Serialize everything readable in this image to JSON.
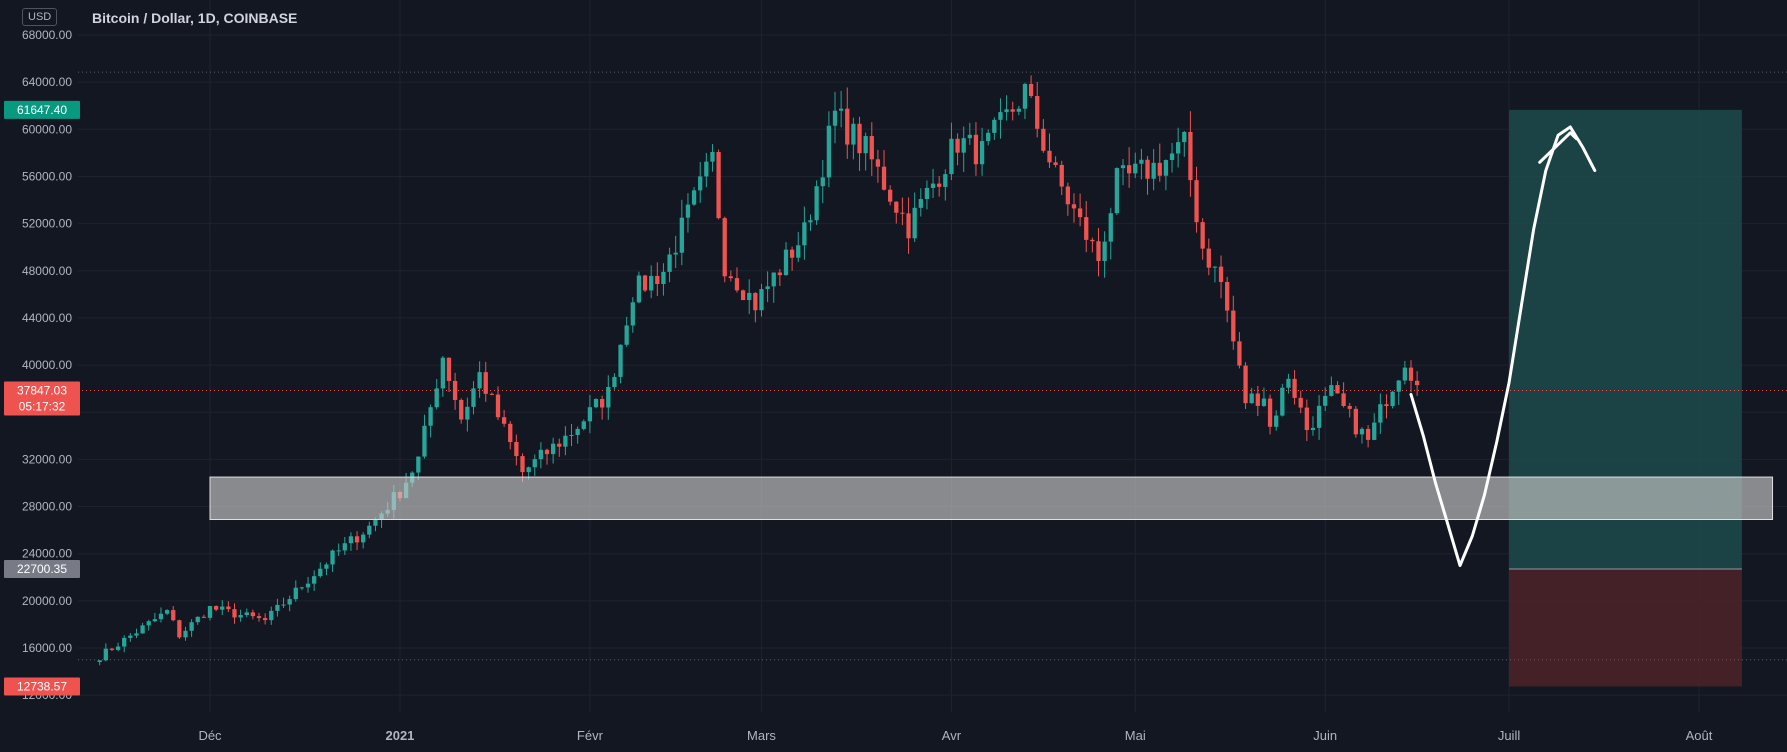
{
  "header": {
    "currency_badge": "USD",
    "title": "Bitcoin / Dollar, 1D, COINBASE"
  },
  "colors": {
    "background": "#131722",
    "up": "#26a69a",
    "down": "#ef5350",
    "grid": "#1f2330",
    "axis_text": "#b2b5be",
    "target_zone": "#1d4a4a",
    "stop_zone": "#4a2227",
    "support_zone": "#c8c8c8"
  },
  "chart_data": {
    "type": "candlestick",
    "y_axis": {
      "ylim": [
        10000,
        69000
      ],
      "ticks": [
        "68000.00",
        "64000.00",
        "60000.00",
        "56000.00",
        "52000.00",
        "48000.00",
        "44000.00",
        "40000.00",
        "32000.00",
        "28000.00",
        "24000.00",
        "20000.00",
        "16000.00"
      ],
      "label_positions": [
        68000,
        64000,
        60000,
        56000,
        52000,
        48000,
        44000,
        40000,
        32000,
        28000,
        24000,
        20000,
        16000
      ],
      "partial_bottom_tick": "12000.00",
      "grid_values": [
        68000,
        64000,
        60000,
        56000,
        52000,
        48000,
        44000,
        40000,
        36000,
        32000,
        28000,
        24000,
        20000,
        16000,
        12000
      ]
    },
    "x_axis": {
      "start_date": "2020-11-13",
      "end_date": "2021-08-13",
      "ticks": [
        {
          "date": "2020-12-01",
          "label": "Déc",
          "bold": false
        },
        {
          "date": "2021-01-01",
          "label": "2021",
          "bold": true
        },
        {
          "date": "2021-02-01",
          "label": "Févr",
          "bold": false
        },
        {
          "date": "2021-03-01",
          "label": "Mars",
          "bold": false
        },
        {
          "date": "2021-04-01",
          "label": "Avr",
          "bold": false
        },
        {
          "date": "2021-05-01",
          "label": "Mai",
          "bold": false
        },
        {
          "date": "2021-06-01",
          "label": "Juin",
          "bold": false
        },
        {
          "date": "2021-07-01",
          "label": "Juill",
          "bold": false
        },
        {
          "date": "2021-08-01",
          "label": "Août",
          "bold": false
        }
      ]
    },
    "price_labels": [
      {
        "value": 61647.4,
        "text": "61647.40",
        "color": "#089981"
      },
      {
        "value": 37847.03,
        "text": "37847.03",
        "subtext": "05:17:32",
        "color": "#ef5350"
      },
      {
        "value": 22700.35,
        "text": "22700.35",
        "color": "#787b86"
      },
      {
        "value": 12738.57,
        "text": "12738.57",
        "color": "#ef5350"
      }
    ],
    "horizontal_lines": [
      {
        "value": 64850,
        "style": "dotted",
        "color": "#5d606b"
      },
      {
        "value": 37847.03,
        "style": "dotted",
        "color": "#ef5350"
      },
      {
        "value": 15000,
        "style": "dotted",
        "color": "#5d606b"
      }
    ],
    "support_zone": {
      "from_date": "2020-12-01",
      "to_date": "2021-08-13",
      "low": 26900,
      "high": 30500
    },
    "position": {
      "from_date": "2021-07-01",
      "to_date": "2021-08-08",
      "entry": 22700.35,
      "target": 61647.4,
      "stop": 12738.57
    },
    "projection": [
      [
        "2021-06-15",
        37500
      ],
      [
        "2021-06-17",
        34000
      ],
      [
        "2021-06-19",
        30000
      ],
      [
        "2021-06-21",
        26500
      ],
      [
        "2021-06-23",
        23000
      ],
      [
        "2021-06-25",
        25500
      ],
      [
        "2021-06-27",
        29000
      ],
      [
        "2021-06-29",
        33500
      ],
      [
        "2021-07-01",
        38500
      ],
      [
        "2021-07-03",
        45000
      ],
      [
        "2021-07-05",
        51500
      ],
      [
        "2021-07-07",
        56500
      ],
      [
        "2021-07-09",
        59500
      ],
      [
        "2021-07-11",
        60200
      ],
      [
        "2021-07-13",
        58500
      ],
      [
        "2021-07-15",
        56500
      ]
    ],
    "projection_hook": [
      [
        "2021-07-06",
        57200
      ],
      [
        "2021-07-09",
        58700
      ],
      [
        "2021-07-11",
        59700
      ],
      [
        "2021-07-12",
        59200
      ]
    ],
    "candle_anchors": [
      [
        "2020-11-13",
        15300
      ],
      [
        "2020-11-24",
        19100
      ],
      [
        "2020-11-26",
        17100
      ],
      [
        "2020-12-01",
        19400
      ],
      [
        "2020-12-10",
        18300
      ],
      [
        "2020-12-16",
        21300
      ],
      [
        "2020-12-21",
        23800
      ],
      [
        "2020-12-27",
        26300
      ],
      [
        "2021-01-01",
        29300
      ],
      [
        "2021-01-04",
        32000
      ],
      [
        "2021-01-08",
        40800
      ],
      [
        "2021-01-11",
        35500
      ],
      [
        "2021-01-14",
        39200
      ],
      [
        "2021-01-21",
        30900
      ],
      [
        "2021-01-29",
        34300
      ],
      [
        "2021-02-04",
        37600
      ],
      [
        "2021-02-08",
        46200
      ],
      [
        "2021-02-13",
        48000
      ],
      [
        "2021-02-21",
        57400
      ],
      [
        "2021-02-23",
        48600
      ],
      [
        "2021-02-28",
        45200
      ],
      [
        "2021-03-08",
        51200
      ],
      [
        "2021-03-13",
        61200
      ],
      [
        "2021-03-18",
        58200
      ],
      [
        "2021-03-25",
        51800
      ],
      [
        "2021-04-02",
        59000
      ],
      [
        "2021-04-06",
        58000
      ],
      [
        "2021-04-13",
        63200
      ],
      [
        "2021-04-18",
        56000
      ],
      [
        "2021-04-25",
        49000
      ],
      [
        "2021-04-28",
        55500
      ],
      [
        "2021-05-05",
        57000
      ],
      [
        "2021-05-09",
        58600
      ],
      [
        "2021-05-12",
        50000
      ],
      [
        "2021-05-15",
        47000
      ],
      [
        "2021-05-19",
        37000
      ],
      [
        "2021-05-22",
        37500
      ],
      [
        "2021-05-23",
        34700
      ],
      [
        "2021-05-26",
        39200
      ],
      [
        "2021-05-29",
        34600
      ],
      [
        "2021-06-02",
        37600
      ],
      [
        "2021-06-08",
        33500
      ],
      [
        "2021-06-11",
        37300
      ],
      [
        "2021-06-14",
        40500
      ],
      [
        "2021-06-16",
        38300
      ]
    ]
  }
}
